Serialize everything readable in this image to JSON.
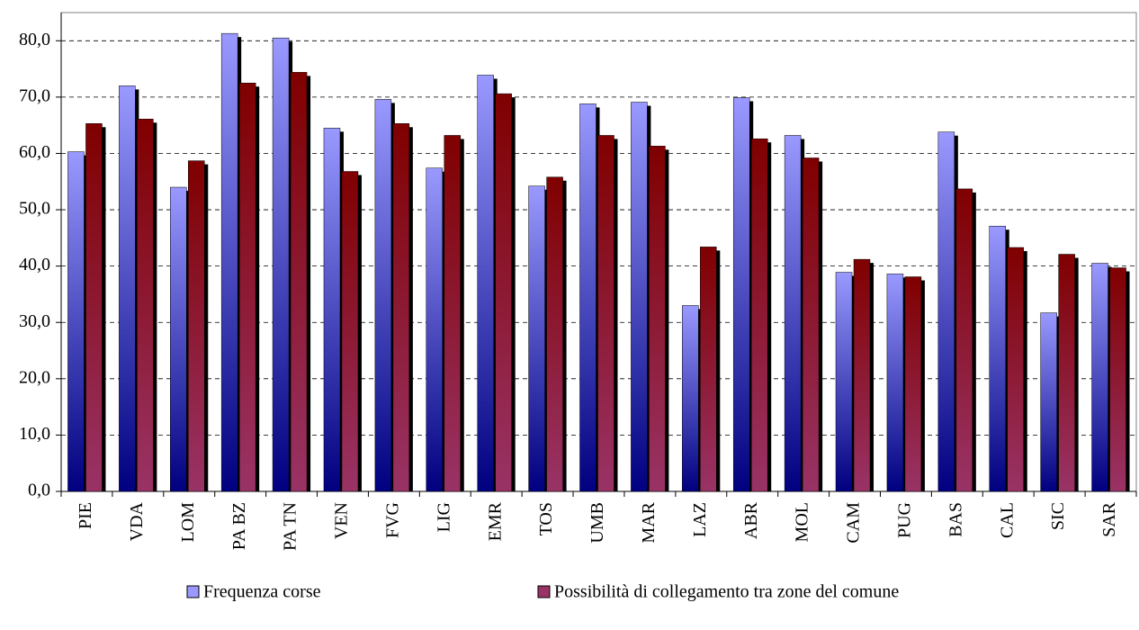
{
  "chart_data": {
    "type": "bar",
    "categories": [
      "PIE",
      "VDA",
      "LOM",
      "PA BZ",
      "PA TN",
      "VEN",
      "FVG",
      "LIG",
      "EMR",
      "TOS",
      "UMB",
      "MAR",
      "LAZ",
      "ABR",
      "MOL",
      "CAM",
      "PUG",
      "BAS",
      "CAL",
      "SIC",
      "SAR"
    ],
    "series": [
      {
        "name": "Frequenza corse",
        "color": "#9999ff",
        "values": [
          60.3,
          72.0,
          54.0,
          81.3,
          80.5,
          64.5,
          69.6,
          57.4,
          73.9,
          54.2,
          68.8,
          69.1,
          33.0,
          69.9,
          63.2,
          38.9,
          38.6,
          63.8,
          47.1,
          31.7,
          40.5
        ]
      },
      {
        "name": "Possibilità di collegamento tra zone del comune",
        "color": "#993366",
        "values": [
          65.3,
          66.1,
          58.7,
          72.5,
          74.4,
          56.8,
          65.3,
          63.2,
          70.6,
          55.8,
          63.2,
          61.3,
          43.4,
          62.6,
          59.2,
          41.2,
          38.1,
          53.7,
          43.3,
          42.1,
          39.7
        ]
      }
    ],
    "ylim": [
      0,
      85
    ],
    "yticks": [
      {
        "value": 0,
        "label": "0,0"
      },
      {
        "value": 10,
        "label": "10,0"
      },
      {
        "value": 20,
        "label": "20,0"
      },
      {
        "value": 30,
        "label": "30,0"
      },
      {
        "value": 40,
        "label": "40,0"
      },
      {
        "value": 50,
        "label": "50,0"
      },
      {
        "value": 60,
        "label": "60,0"
      },
      {
        "value": 70,
        "label": "70,0"
      },
      {
        "value": 80,
        "label": "80,0"
      }
    ],
    "grid": true
  }
}
